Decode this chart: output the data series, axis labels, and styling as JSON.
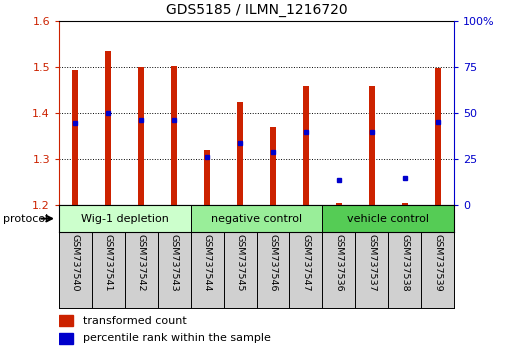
{
  "title": "GDS5185 / ILMN_1216720",
  "samples": [
    "GSM737540",
    "GSM737541",
    "GSM737542",
    "GSM737543",
    "GSM737544",
    "GSM737545",
    "GSM737546",
    "GSM737547",
    "GSM737536",
    "GSM737537",
    "GSM737538",
    "GSM737539"
  ],
  "bar_tops": [
    1.493,
    1.535,
    1.5,
    1.502,
    1.32,
    1.425,
    1.37,
    1.46,
    1.205,
    1.46,
    1.205,
    1.498
  ],
  "bar_base": 1.2,
  "blue_values_left": [
    1.378,
    1.4,
    1.385,
    1.385,
    1.305,
    1.335,
    1.315,
    1.36,
    1.255,
    1.36,
    1.26,
    1.382
  ],
  "ylim_left": [
    1.2,
    1.6
  ],
  "ylim_right": [
    0,
    100
  ],
  "yticks_left": [
    1.2,
    1.3,
    1.4,
    1.5,
    1.6
  ],
  "yticks_right": [
    0,
    25,
    50,
    75,
    100
  ],
  "bar_color": "#cc2200",
  "blue_color": "#0000cc",
  "bg_color": "#ffffff",
  "groups": [
    {
      "label": "Wig-1 depletion",
      "start": 0,
      "end": 3,
      "color": "#ccffcc"
    },
    {
      "label": "negative control",
      "start": 4,
      "end": 7,
      "color": "#99ee99"
    },
    {
      "label": "vehicle control",
      "start": 8,
      "end": 11,
      "color": "#55cc55"
    }
  ],
  "protocol_label": "protocol",
  "legend_items": [
    {
      "label": "transformed count",
      "color": "#cc2200"
    },
    {
      "label": "percentile rank within the sample",
      "color": "#0000cc"
    }
  ]
}
